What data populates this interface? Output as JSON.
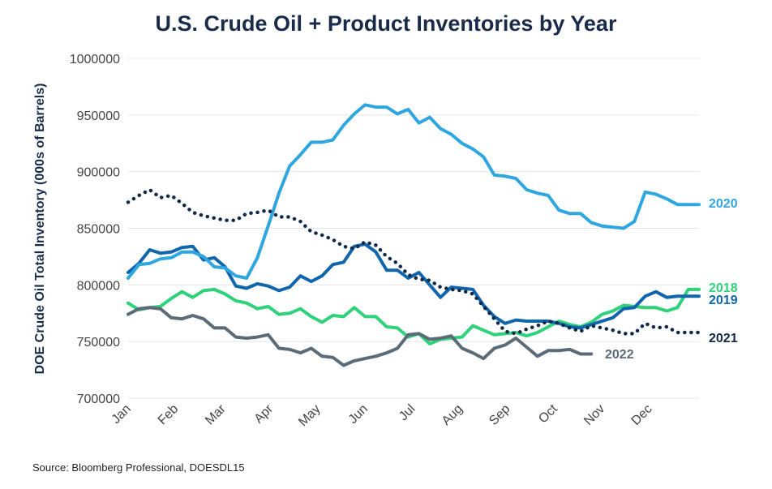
{
  "chart_data": {
    "type": "line",
    "title": "U.S. Crude Oil + Product Inventories by Year",
    "xlabel": "",
    "ylabel": "DOE Crude Oil Total Inventory (000s of Barrels)",
    "ylim": [
      700000,
      1000000
    ],
    "xlim": [
      0,
      53
    ],
    "yticks": [
      700000,
      750000,
      800000,
      850000,
      900000,
      950000,
      1000000
    ],
    "month_labels": [
      "Jan",
      "Feb",
      "Mar",
      "Apr",
      "May",
      "Jun",
      "Jul",
      "Aug",
      "Sep",
      "Oct",
      "Nov",
      "Dec"
    ],
    "month_positions": [
      0,
      4.4,
      8.8,
      13.2,
      17.6,
      22,
      26.4,
      30.8,
      35.2,
      39.6,
      44,
      48.4
    ],
    "grid": true,
    "legend": "end-of-line labels",
    "source": "Source: Bloomberg Professional, DOESDL15",
    "series": [
      {
        "name": "2018",
        "color": "#2fd27a",
        "dashed": false,
        "x": [
          0,
          1,
          2,
          3,
          4,
          5,
          6,
          7,
          8,
          9,
          10,
          11,
          12,
          13,
          14,
          15,
          16,
          17,
          18,
          19,
          20,
          21,
          22,
          23,
          24,
          25,
          26,
          27,
          28,
          29,
          30,
          31,
          32,
          33,
          34,
          35,
          36,
          37,
          38,
          39,
          40,
          41,
          42,
          43,
          44,
          45,
          46,
          47,
          48,
          49,
          50,
          51,
          52,
          53
        ],
        "values": [
          784000,
          778000,
          780000,
          781000,
          788000,
          794000,
          789000,
          795000,
          796000,
          792000,
          786000,
          784000,
          779000,
          781000,
          774000,
          775000,
          779000,
          772000,
          767000,
          773000,
          772000,
          780000,
          772000,
          772000,
          763000,
          762000,
          754000,
          757000,
          748000,
          752000,
          753000,
          754000,
          764000,
          760000,
          756000,
          757000,
          758000,
          755000,
          758000,
          763000,
          768000,
          765000,
          763000,
          767000,
          774000,
          777000,
          782000,
          781000,
          780000,
          780000,
          777000,
          780000,
          796000,
          796000
        ]
      },
      {
        "name": "2019",
        "color": "#1066ad",
        "dashed": false,
        "x": [
          0,
          1,
          2,
          3,
          4,
          5,
          6,
          7,
          8,
          9,
          10,
          11,
          12,
          13,
          14,
          15,
          16,
          17,
          18,
          19,
          20,
          21,
          22,
          23,
          24,
          25,
          26,
          27,
          28,
          29,
          30,
          31,
          32,
          33,
          34,
          35,
          36,
          37,
          38,
          39,
          40,
          41,
          42,
          43,
          44,
          45,
          46,
          47,
          48,
          49,
          50,
          51,
          52,
          53
        ],
        "values": [
          811000,
          819000,
          831000,
          828000,
          829000,
          833000,
          834000,
          822000,
          824000,
          816000,
          799000,
          797000,
          801000,
          799000,
          795000,
          798000,
          808000,
          803000,
          808000,
          818000,
          820000,
          834000,
          836000,
          829000,
          813000,
          813000,
          806000,
          811000,
          800000,
          789000,
          798000,
          797000,
          796000,
          782000,
          772000,
          766000,
          769000,
          768000,
          768000,
          768000,
          766000,
          763000,
          762000,
          765000,
          768000,
          771000,
          779000,
          780000,
          790000,
          794000,
          789000,
          790000,
          790000,
          790000
        ]
      },
      {
        "name": "2020",
        "color": "#2fa6df",
        "dashed": false,
        "x": [
          0,
          1,
          2,
          3,
          4,
          5,
          6,
          7,
          8,
          9,
          10,
          11,
          12,
          13,
          14,
          15,
          16,
          17,
          18,
          19,
          20,
          21,
          22,
          23,
          24,
          25,
          26,
          27,
          28,
          29,
          30,
          31,
          32,
          33,
          34,
          35,
          36,
          37,
          38,
          39,
          40,
          41,
          42,
          43,
          44,
          45,
          46,
          47,
          48,
          49,
          50,
          51,
          52,
          53
        ],
        "values": [
          806000,
          818000,
          819000,
          823000,
          824000,
          829000,
          829000,
          825000,
          816000,
          815000,
          808000,
          806000,
          824000,
          852000,
          881000,
          905000,
          915000,
          926000,
          926000,
          928000,
          941000,
          951000,
          959000,
          957000,
          957000,
          951000,
          955000,
          943000,
          948000,
          938000,
          933000,
          925000,
          920000,
          913000,
          897000,
          896000,
          894000,
          884000,
          881000,
          879000,
          866000,
          863000,
          863000,
          855000,
          852000,
          851000,
          850000,
          856000,
          882000,
          880000,
          876000,
          871000,
          871000,
          871000
        ]
      },
      {
        "name": "2021",
        "color": "#13294b",
        "dashed": true,
        "x": [
          0,
          1,
          2,
          3,
          4,
          5,
          6,
          7,
          8,
          9,
          10,
          11,
          12,
          13,
          14,
          15,
          16,
          17,
          18,
          19,
          20,
          21,
          22,
          23,
          24,
          25,
          26,
          27,
          28,
          29,
          30,
          31,
          32,
          33,
          34,
          35,
          36,
          37,
          38,
          39,
          40,
          41,
          42,
          43,
          44,
          45,
          46,
          47,
          48,
          49,
          50,
          51,
          52,
          53
        ],
        "values": [
          873000,
          879000,
          884000,
          877000,
          879000,
          872000,
          864000,
          861000,
          859000,
          857000,
          857000,
          863000,
          864000,
          866000,
          860000,
          860000,
          856000,
          847000,
          844000,
          840000,
          834000,
          832000,
          838000,
          835000,
          825000,
          819000,
          809000,
          805000,
          804000,
          798000,
          796000,
          795000,
          792000,
          781000,
          770000,
          759000,
          757000,
          761000,
          764000,
          768000,
          766000,
          762000,
          759000,
          764000,
          762000,
          760000,
          757000,
          757000,
          766000,
          762000,
          763000,
          758000,
          758000,
          758000
        ]
      },
      {
        "name": "2022",
        "color": "#5c6b78",
        "dashed": false,
        "x": [
          0,
          1,
          2,
          3,
          4,
          5,
          6,
          7,
          8,
          9,
          10,
          11,
          12,
          13,
          14,
          15,
          16,
          17,
          18,
          19,
          20,
          21,
          22,
          23,
          24,
          25,
          26,
          27,
          28,
          29,
          30,
          31,
          32,
          33,
          34,
          35,
          36,
          37,
          38,
          39,
          40,
          41,
          42,
          43
        ],
        "values": [
          774000,
          779000,
          780000,
          779000,
          771000,
          770000,
          773000,
          770000,
          762000,
          762000,
          754000,
          753000,
          754000,
          756000,
          744000,
          743000,
          740000,
          744000,
          737000,
          736000,
          729000,
          733000,
          735000,
          737000,
          740000,
          744000,
          756000,
          757000,
          752000,
          753000,
          755000,
          744000,
          740000,
          735000,
          744000,
          747000,
          753000,
          745000,
          737000,
          742000,
          742000,
          743000,
          739000,
          739000
        ]
      }
    ]
  }
}
